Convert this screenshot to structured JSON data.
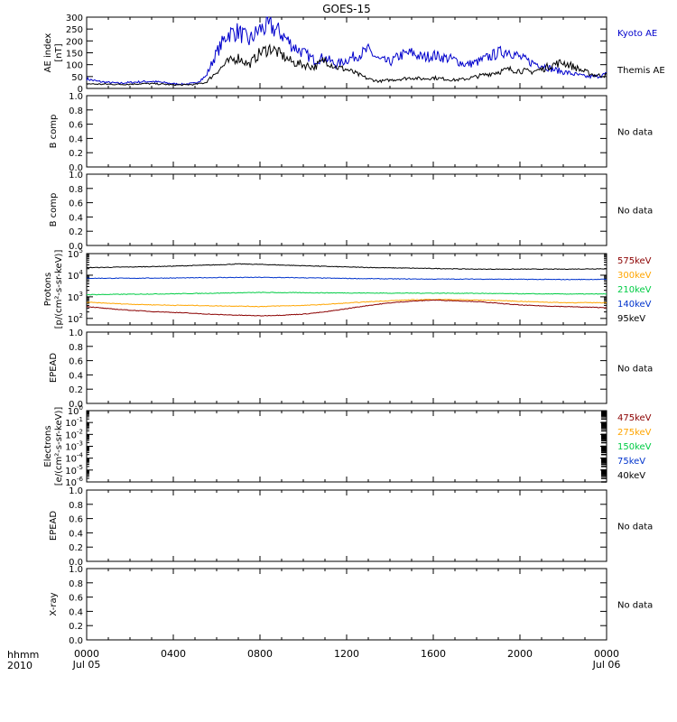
{
  "title": "GOES-15",
  "x_axis": {
    "row1_label": "hhmm",
    "row2_label": "2010",
    "ticks": [
      {
        "hour": 0,
        "label": "0000",
        "sub": "Jul 05"
      },
      {
        "hour": 4,
        "label": "0400",
        "sub": ""
      },
      {
        "hour": 8,
        "label": "0800",
        "sub": ""
      },
      {
        "hour": 12,
        "label": "1200",
        "sub": ""
      },
      {
        "hour": 16,
        "label": "1600",
        "sub": ""
      },
      {
        "hour": 20,
        "label": "2000",
        "sub": ""
      },
      {
        "hour": 24,
        "label": "0000",
        "sub": "Jul 06"
      }
    ],
    "range_hours": [
      0,
      24
    ]
  },
  "colors": {
    "kyoto": "#0000cc",
    "themis": "#000000",
    "p575": "#8b0000",
    "p300": "#ffa500",
    "p210": "#00cc44",
    "p140": "#0033cc",
    "p95": "#000000",
    "e475": "#8b0000",
    "e275": "#ffa500",
    "e150": "#00cc44",
    "e75": "#0033cc",
    "e40": "#000000"
  },
  "chart_data": [
    {
      "id": "ae",
      "type": "line",
      "ylabel": [
        "AE index",
        "[nT]"
      ],
      "ylim": [
        0,
        300
      ],
      "yticks": [
        0,
        50,
        100,
        150,
        200,
        250,
        300
      ],
      "series": [
        {
          "name": "Kyoto AE",
          "color": "#0000cc",
          "x": [
            0,
            0.5,
            1,
            1.5,
            2,
            2.5,
            3,
            3.5,
            4,
            4.5,
            5,
            5.5,
            6,
            6.5,
            7,
            7.5,
            8,
            8.5,
            9,
            9.5,
            10,
            10.5,
            11,
            11.5,
            12,
            12.5,
            13,
            13.5,
            14,
            14.5,
            15,
            15.5,
            16,
            16.5,
            17,
            17.5,
            18,
            18.5,
            19,
            19.5,
            20,
            20.5,
            21,
            21.5,
            22,
            22.5,
            23,
            23.5,
            24
          ],
          "y": [
            40,
            30,
            25,
            22,
            25,
            28,
            30,
            25,
            20,
            18,
            22,
            50,
            150,
            230,
            240,
            200,
            250,
            260,
            230,
            180,
            150,
            120,
            130,
            100,
            120,
            140,
            160,
            120,
            110,
            140,
            150,
            130,
            140,
            130,
            120,
            100,
            110,
            130,
            150,
            160,
            130,
            110,
            100,
            80,
            70,
            60,
            50,
            50,
            60
          ]
        },
        {
          "name": "Themis AE",
          "color": "#000000",
          "x": [
            0,
            0.5,
            1,
            1.5,
            2,
            2.5,
            3,
            3.5,
            4,
            4.5,
            5,
            5.5,
            6,
            6.5,
            7,
            7.5,
            8,
            8.5,
            9,
            9.5,
            10,
            10.5,
            11,
            11.5,
            12,
            12.5,
            13,
            13.5,
            14,
            14.5,
            15,
            15.5,
            16,
            16.5,
            17,
            17.5,
            18,
            18.5,
            19,
            19.5,
            20,
            20.5,
            21,
            21.5,
            22,
            22.5,
            23,
            23.5,
            24
          ],
          "y": [
            20,
            18,
            18,
            17,
            18,
            20,
            20,
            18,
            15,
            15,
            17,
            25,
            70,
            110,
            130,
            100,
            150,
            170,
            140,
            110,
            100,
            90,
            120,
            90,
            80,
            60,
            40,
            30,
            35,
            40,
            45,
            40,
            45,
            40,
            35,
            40,
            50,
            60,
            70,
            80,
            75,
            70,
            80,
            100,
            110,
            90,
            70,
            55,
            55
          ]
        }
      ],
      "legend": [
        {
          "text": "Kyoto AE",
          "color": "#0000cc"
        },
        {
          "text": "Themis AE",
          "color": "#000000"
        }
      ]
    },
    {
      "id": "b1",
      "type": "line",
      "ylabel": [
        "B comp"
      ],
      "ylim": [
        0,
        1
      ],
      "yticks": [
        0,
        0.2,
        0.4,
        0.6,
        0.8,
        1.0
      ],
      "ytick_labels": [
        "0.0",
        "0.2",
        "0.4",
        "0.6",
        "0.8",
        "1.0"
      ],
      "series": [],
      "legend": [
        {
          "text": "No data",
          "color": "#000000"
        }
      ]
    },
    {
      "id": "b2",
      "type": "line",
      "ylabel": [
        "B comp"
      ],
      "ylim": [
        0,
        1
      ],
      "yticks": [
        0,
        0.2,
        0.4,
        0.6,
        0.8,
        1.0
      ],
      "ytick_labels": [
        "0.0",
        "0.2",
        "0.4",
        "0.6",
        "0.8",
        "1.0"
      ],
      "series": [],
      "legend": [
        {
          "text": "No data",
          "color": "#000000"
        }
      ]
    },
    {
      "id": "protons",
      "type": "line",
      "log": true,
      "ylabel": [
        "Protons",
        "[p/(cm²-s-sr-keV)]"
      ],
      "ylim_exp": [
        1.7,
        5
      ],
      "yticks_exp": [
        2,
        3,
        4,
        5
      ],
      "series": [
        {
          "name": "95keV",
          "color": "#000000",
          "x": [
            0,
            2,
            4,
            6,
            7,
            8,
            9,
            10,
            12,
            14,
            16,
            18,
            20,
            22,
            24
          ],
          "y_exp": [
            4.35,
            4.38,
            4.42,
            4.48,
            4.52,
            4.5,
            4.47,
            4.44,
            4.38,
            4.34,
            4.31,
            4.28,
            4.28,
            4.28,
            4.3
          ]
        },
        {
          "name": "140keV",
          "color": "#0033cc",
          "x": [
            0,
            2,
            4,
            6,
            8,
            10,
            12,
            14,
            16,
            18,
            20,
            22,
            24
          ],
          "y_exp": [
            3.86,
            3.86,
            3.87,
            3.89,
            3.9,
            3.88,
            3.85,
            3.83,
            3.82,
            3.82,
            3.81,
            3.8,
            3.81
          ]
        },
        {
          "name": "210keV",
          "color": "#00cc44",
          "x": [
            0,
            2,
            4,
            6,
            8,
            10,
            12,
            14,
            16,
            18,
            20,
            22,
            24
          ],
          "y_exp": [
            3.1,
            3.12,
            3.14,
            3.17,
            3.2,
            3.19,
            3.18,
            3.17,
            3.17,
            3.16,
            3.14,
            3.13,
            3.13
          ]
        },
        {
          "name": "300keV",
          "color": "#ffa500",
          "x": [
            0,
            1,
            2,
            3,
            4,
            5,
            6,
            7,
            8,
            9,
            10,
            11,
            12,
            13,
            14,
            15,
            16,
            17,
            18,
            19,
            20,
            21,
            22,
            23,
            24
          ],
          "y_exp": [
            2.75,
            2.7,
            2.66,
            2.63,
            2.61,
            2.6,
            2.58,
            2.57,
            2.55,
            2.58,
            2.6,
            2.65,
            2.71,
            2.77,
            2.82,
            2.86,
            2.88,
            2.87,
            2.85,
            2.83,
            2.79,
            2.76,
            2.73,
            2.73,
            2.73
          ]
        },
        {
          "name": "575keV",
          "color": "#8b0000",
          "x": [
            0,
            1,
            2,
            3,
            4,
            5,
            6,
            7,
            8,
            9,
            10,
            11,
            12,
            13,
            14,
            15,
            16,
            17,
            18,
            19,
            20,
            21,
            22,
            23,
            24
          ],
          "y_exp": [
            2.55,
            2.45,
            2.38,
            2.32,
            2.28,
            2.23,
            2.18,
            2.15,
            2.12,
            2.15,
            2.2,
            2.3,
            2.45,
            2.6,
            2.72,
            2.8,
            2.85,
            2.82,
            2.78,
            2.7,
            2.62,
            2.58,
            2.55,
            2.52,
            2.5
          ]
        }
      ],
      "legend": [
        {
          "text": "575keV",
          "color": "#8b0000"
        },
        {
          "text": "300keV",
          "color": "#ffa500"
        },
        {
          "text": "210keV",
          "color": "#00cc44"
        },
        {
          "text": "140keV",
          "color": "#0033cc"
        },
        {
          "text": "95keV",
          "color": "#000000"
        }
      ]
    },
    {
      "id": "epead1",
      "type": "line",
      "ylabel": [
        "EPEAD"
      ],
      "ylim": [
        0,
        1
      ],
      "yticks": [
        0,
        0.2,
        0.4,
        0.6,
        0.8,
        1.0
      ],
      "ytick_labels": [
        "0.0",
        "0.2",
        "0.4",
        "0.6",
        "0.8",
        "1.0"
      ],
      "series": [],
      "legend": [
        {
          "text": "No data",
          "color": "#000000"
        }
      ]
    },
    {
      "id": "electrons",
      "type": "line",
      "log": true,
      "ylabel": [
        "Electrons",
        "[e/(cm²-s-sr-keV)]"
      ],
      "ylim_exp": [
        -6,
        0
      ],
      "yticks_exp": [
        -6,
        -5,
        -4,
        -3,
        -2,
        -1,
        0
      ],
      "series": [],
      "legend": [
        {
          "text": "475keV",
          "color": "#8b0000"
        },
        {
          "text": "275keV",
          "color": "#ffa500"
        },
        {
          "text": "150keV",
          "color": "#00cc44"
        },
        {
          "text": "75keV",
          "color": "#0033cc"
        },
        {
          "text": "40keV",
          "color": "#000000"
        }
      ]
    },
    {
      "id": "epead2",
      "type": "line",
      "ylabel": [
        "EPEAD"
      ],
      "ylim": [
        0,
        1
      ],
      "yticks": [
        0,
        0.2,
        0.4,
        0.6,
        0.8,
        1.0
      ],
      "ytick_labels": [
        "0.0",
        "0.2",
        "0.4",
        "0.6",
        "0.8",
        "1.0"
      ],
      "series": [],
      "legend": [
        {
          "text": "No data",
          "color": "#000000"
        }
      ]
    },
    {
      "id": "xray",
      "type": "line",
      "ylabel": [
        "X-ray"
      ],
      "ylim": [
        0,
        1
      ],
      "yticks": [
        0,
        0.2,
        0.4,
        0.6,
        0.8,
        1.0
      ],
      "ytick_labels": [
        "0.0",
        "0.2",
        "0.4",
        "0.6",
        "0.8",
        "1.0"
      ],
      "series": [],
      "legend": [
        {
          "text": "No data",
          "color": "#000000"
        }
      ]
    }
  ]
}
